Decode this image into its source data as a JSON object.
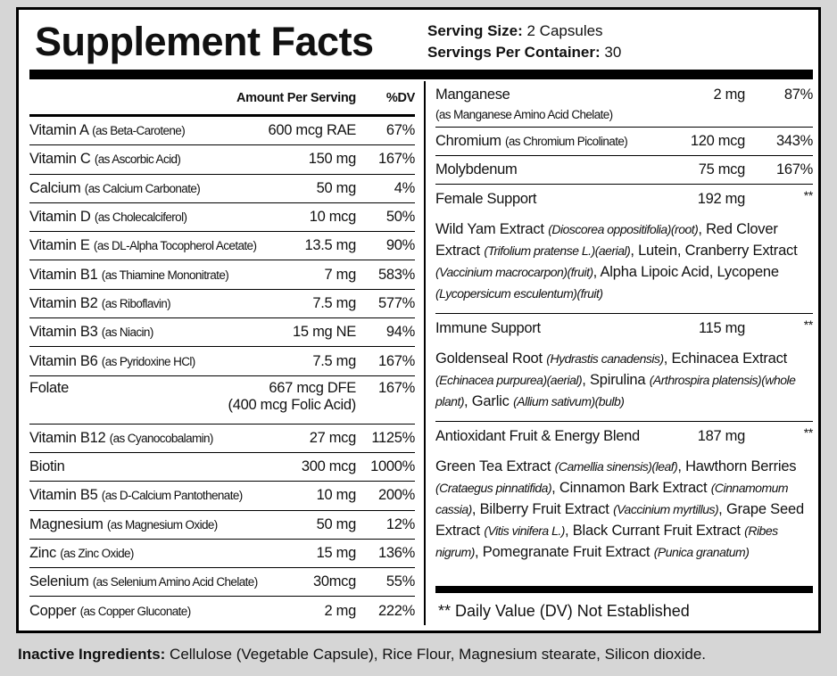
{
  "header": {
    "title": "Supplement Facts",
    "serving_size_label": "Serving Size:",
    "serving_size": "2 Capsules",
    "servings_label": "Servings Per Container:",
    "servings": "30"
  },
  "left": {
    "column_headers": [
      "Amount Per Serving",
      "%DV"
    ],
    "rows": [
      {
        "name": "Vitamin A",
        "source": "(as Beta-Carotene)",
        "amount": "600 mcg RAE",
        "dv": "67%"
      },
      {
        "name": "Vitamin C",
        "source": "(as Ascorbic Acid)",
        "amount": "150 mg",
        "dv": "167%"
      },
      {
        "name": "Calcium",
        "source": "(as Calcium Carbonate)",
        "amount": "50 mg",
        "dv": "4%"
      },
      {
        "name": "Vitamin D",
        "source": "(as Cholecalciferol)",
        "amount": "10 mcg",
        "dv": "50%"
      },
      {
        "name": "Vitamin E",
        "source": "(as DL-Alpha Tocopherol Acetate)",
        "amount": "13.5 mg",
        "dv": "90%"
      },
      {
        "name": "Vitamin B1",
        "source": "(as Thiamine Mononitrate)",
        "amount": "7 mg",
        "dv": "583%"
      },
      {
        "name": "Vitamin B2",
        "source": "(as Riboflavin)",
        "amount": "7.5 mg",
        "dv": "577%"
      },
      {
        "name": "Vitamin B3",
        "source": "(as Niacin)",
        "amount": "15 mg NE",
        "dv": "94%"
      },
      {
        "name": "Vitamin B6",
        "source": "(as Pyridoxine HCl)",
        "amount": "7.5 mg",
        "dv": "167%"
      },
      {
        "name": "Folate",
        "amount": "667 mcg DFE",
        "dv": "167%",
        "note": "(400 mcg Folic Acid)"
      },
      {
        "name": "Vitamin B12",
        "source": "(as Cyanocobalamin)",
        "amount": "27 mcg",
        "dv": "1125%"
      },
      {
        "name": "Biotin",
        "amount": "300 mcg",
        "dv": "1000%"
      },
      {
        "name": "Vitamin B5",
        "source": "(as D-Calcium Pantothenate)",
        "amount": "10 mg",
        "dv": "200%"
      },
      {
        "name": "Magnesium",
        "source": "(as Magnesium Oxide)",
        "amount": "50 mg",
        "dv": "12%"
      },
      {
        "name": "Zinc",
        "source": "(as Zinc Oxide)",
        "amount": "15 mg",
        "dv": "136%"
      },
      {
        "name": "Selenium",
        "source": "(as Selenium Amino Acid Chelate)",
        "amount": "30mcg",
        "dv": "55%"
      },
      {
        "name": "Copper",
        "source": "(as Copper Gluconate)",
        "amount": "2 mg",
        "dv": "222%"
      }
    ]
  },
  "right": {
    "rows": [
      {
        "name": "Manganese",
        "source": "(as Manganese Amino Acid Chelate)",
        "amount": "2 mg",
        "dv": "87%"
      },
      {
        "name": "Chromium",
        "source": "(as Chromium Picolinate)",
        "amount": "120 mcg",
        "dv": "343%"
      },
      {
        "name": "Molybdenum",
        "amount": "75 mcg",
        "dv": "167%"
      }
    ],
    "blends": [
      {
        "name": "Female Support",
        "amount": "192 mg",
        "dv": "**",
        "ingredients": [
          [
            "Wild Yam Extract ",
            "(Dioscorea oppositifolia)(root)"
          ],
          [
            ", Red Clover Extract ",
            "(Trifolium pratense L.)(aerial)"
          ],
          [
            ", Lutein, Cranberry Extract ",
            "(Vaccinium macrocarpon)(fruit)"
          ],
          [
            ", Alpha Lipoic Acid, Lycopene ",
            "(Lycopersicum esculentum)(fruit)"
          ]
        ]
      },
      {
        "name": "Immune Support",
        "amount": "115 mg",
        "dv": "**",
        "ingredients": [
          [
            "Goldenseal Root ",
            "(Hydrastis canadensis)"
          ],
          [
            ", Echinacea Extract ",
            "(Echinacea purpurea)(aerial)"
          ],
          [
            ", Spirulina ",
            "(Arthrospira platensis)(whole plant)"
          ],
          [
            ", Garlic ",
            "(Allium sativum)(bulb)"
          ]
        ]
      },
      {
        "name": "Antioxidant Fruit & Energy Blend",
        "amount": "187 mg",
        "dv": "**",
        "ingredients": [
          [
            "Green Tea Extract ",
            "(Camellia sinensis)(leaf)"
          ],
          [
            ", Hawthorn Berries ",
            "(Crataegus pinnatifida)"
          ],
          [
            ", Cinnamon Bark Extract ",
            "(Cinnamomum cassia)"
          ],
          [
            ", Bilberry Fruit Extract ",
            "(Vaccinium myrtillus)"
          ],
          [
            ", Grape Seed Extract ",
            "(Vitis vinifera L.)"
          ],
          [
            ", Black Currant Fruit Extract ",
            "(Ribes nigrum)"
          ],
          [
            ", Pomegranate Fruit Extract ",
            "(Punica granatum)"
          ]
        ]
      }
    ],
    "footnote": "** Daily Value (DV) Not Established"
  },
  "inactive": {
    "label": "Inactive Ingredients:",
    "text": " Cellulose (Vegetable Capsule), Rice Flour, Magnesium stearate, Silicon dioxide."
  }
}
